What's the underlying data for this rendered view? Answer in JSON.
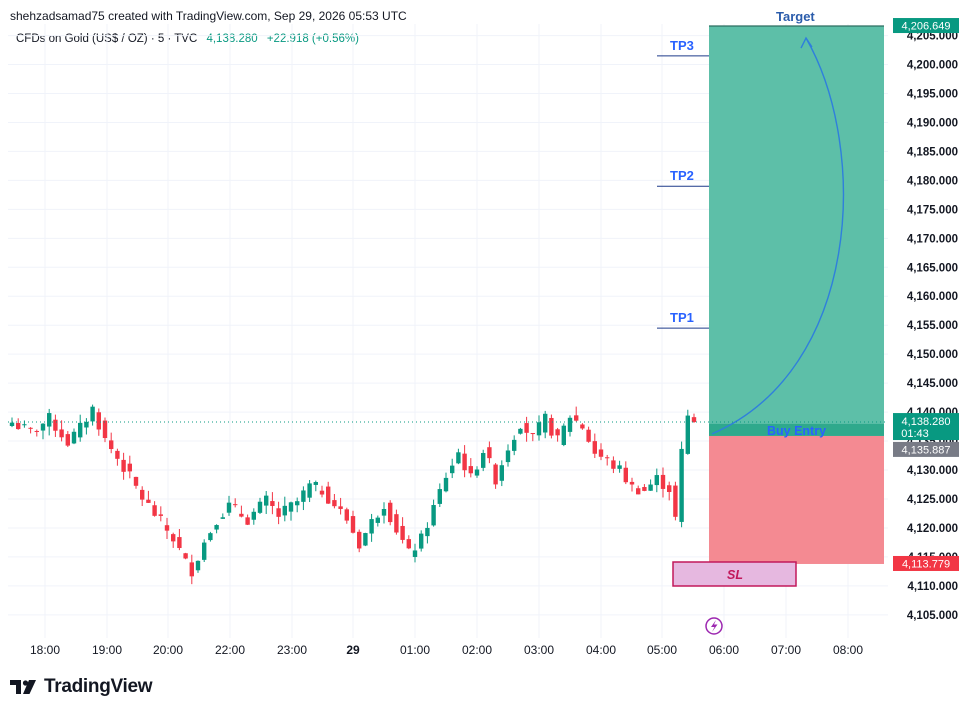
{
  "header": {
    "attribution": "shehzadsamad75 created with TradingView.com, Sep 29, 2026 05:53 UTC",
    "symbol": "CFDs on Gold (US$ / OZ) · 5 · TVC",
    "last_price": "4,138.280",
    "change": "+22.918 (+0.56%)"
  },
  "brand": {
    "name": "TradingView",
    "icon": "tradingview-logo-icon"
  },
  "colors": {
    "up": "#089981",
    "down": "#f23645",
    "target_zone": "#5dbfa8",
    "stop_zone": "#f48a92",
    "label_blue": "#2962ff",
    "sl_box": "#e6b8e0",
    "sl_border": "#c2185b"
  },
  "chart_data": {
    "type": "candlestick",
    "instrument": "CFDs on Gold (US$ / OZ)",
    "interval": "5",
    "x_ticks": [
      "18:00",
      "19:00",
      "20:00",
      "22:00",
      "23:00",
      "29",
      "01:00",
      "02:00",
      "03:00",
      "04:00",
      "05:00",
      "06:00",
      "07:00",
      "08:00"
    ],
    "y_ticks": [
      "4,105.000",
      "4,110.000",
      "4,115.000",
      "4,120.000",
      "4,125.000",
      "4,130.000",
      "4,135.000",
      "4,140.000",
      "4,145.000",
      "4,150.000",
      "4,155.000",
      "4,160.000",
      "4,165.000",
      "4,170.000",
      "4,175.000",
      "4,180.000",
      "4,185.000",
      "4,190.000",
      "4,195.000",
      "4,200.000",
      "4,205.000"
    ],
    "ylim": [
      4101,
      4207
    ],
    "price_path": [
      [
        0,
        4138.2
      ],
      [
        3,
        4136.5
      ],
      [
        6,
        4138.8
      ],
      [
        9,
        4134.8
      ],
      [
        11,
        4137.2
      ],
      [
        13,
        4140.6
      ],
      [
        15,
        4135.2
      ],
      [
        18,
        4130.5
      ],
      [
        21,
        4125.2
      ],
      [
        24,
        4121.0
      ],
      [
        26,
        4118.2
      ],
      [
        28,
        4114.0
      ],
      [
        29,
        4112.7
      ],
      [
        31,
        4117.5
      ],
      [
        33,
        4121.6
      ],
      [
        35,
        4123.8
      ],
      [
        38,
        4121.5
      ],
      [
        41,
        4124.7
      ],
      [
        43,
        4122.1
      ],
      [
        46,
        4124.5
      ],
      [
        48,
        4127.2
      ],
      [
        50,
        4126.5
      ],
      [
        52,
        4124.0
      ],
      [
        54,
        4121.5
      ],
      [
        56,
        4117.2
      ],
      [
        58,
        4121.0
      ],
      [
        60,
        4124.3
      ],
      [
        62,
        4119.8
      ],
      [
        64,
        4115.5
      ],
      [
        66,
        4118.0
      ],
      [
        68,
        4123.5
      ],
      [
        70,
        4129.0
      ],
      [
        72,
        4133.0
      ],
      [
        74,
        4128.5
      ],
      [
        76,
        4133.5
      ],
      [
        78,
        4128.5
      ],
      [
        80,
        4134.0
      ],
      [
        82,
        4138.2
      ],
      [
        84,
        4135.5
      ],
      [
        86,
        4138.8
      ],
      [
        88,
        4135.0
      ],
      [
        90,
        4139.4
      ],
      [
        92,
        4137.5
      ],
      [
        94,
        4133.0
      ],
      [
        96,
        4131.5
      ],
      [
        98,
        4130.0
      ],
      [
        100,
        4127.0
      ],
      [
        102,
        4126.5
      ],
      [
        104,
        4128.5
      ],
      [
        106,
        4126.8
      ],
      [
        107,
        4121.5
      ],
      [
        108,
        4133.0
      ],
      [
        109,
        4139.2
      ],
      [
        110,
        4138.28
      ]
    ],
    "last_candle_index": 110,
    "last_price": 4138.28,
    "last_price_label": "4,138.280",
    "last_candle_countdown": "01:43",
    "entry_price": 4135.887,
    "entry_price_label": "4,135.887",
    "stop_loss_price": 4113.779,
    "stop_loss_label": "4,113.779",
    "target_price": 4206.649,
    "target_price_label": "4,206.649",
    "levels": [
      {
        "label": "TP1",
        "price": 4154.5
      },
      {
        "label": "TP2",
        "price": 4179.0
      },
      {
        "label": "TP3",
        "price": 4201.5
      }
    ],
    "annotations": {
      "target": "Target",
      "entry": "Buy Entry",
      "stop": "SL"
    },
    "grid": true
  }
}
